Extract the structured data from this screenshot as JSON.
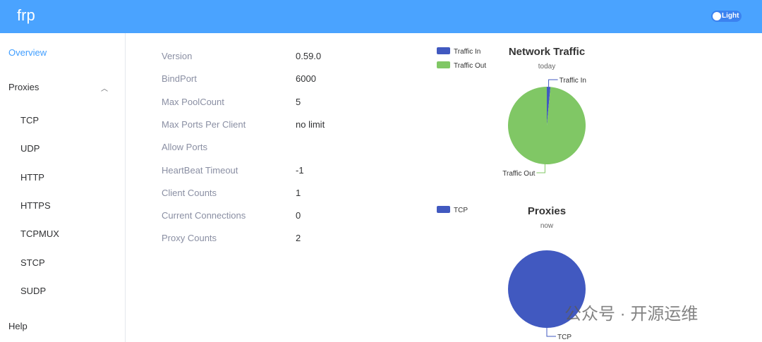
{
  "header": {
    "logo": "frp",
    "theme_toggle": "Light"
  },
  "sidebar": {
    "overview": "Overview",
    "proxies": "Proxies",
    "proxy_items": [
      "TCP",
      "UDP",
      "HTTP",
      "HTTPS",
      "TCPMUX",
      "STCP",
      "SUDP"
    ],
    "help": "Help"
  },
  "info": [
    {
      "k": "Version",
      "v": "0.59.0"
    },
    {
      "k": "BindPort",
      "v": "6000"
    },
    {
      "k": "Max PoolCount",
      "v": "5"
    },
    {
      "k": "Max Ports Per Client",
      "v": "no limit"
    },
    {
      "k": "Allow Ports",
      "v": ""
    },
    {
      "k": "HeartBeat Timeout",
      "v": "-1"
    },
    {
      "k": "Client Counts",
      "v": "1"
    },
    {
      "k": "Current Connections",
      "v": "0"
    },
    {
      "k": "Proxy Counts",
      "v": "2"
    }
  ],
  "chart_data": [
    {
      "type": "pie",
      "title": "Network Traffic",
      "subtitle": "today",
      "legend": "top-left",
      "series": [
        {
          "name": "Traffic In",
          "value": 1.5,
          "color": "#4159c0"
        },
        {
          "name": "Traffic Out",
          "value": 98.5,
          "color": "#80c765"
        }
      ]
    },
    {
      "type": "pie",
      "title": "Proxies",
      "subtitle": "now",
      "legend": "top-left",
      "series": [
        {
          "name": "TCP",
          "value": 100,
          "color": "#4159c0"
        }
      ]
    }
  ],
  "watermark": "公众号 · 开源运维",
  "colors": {
    "header": "#4aa3ff",
    "active": "#409eff"
  }
}
